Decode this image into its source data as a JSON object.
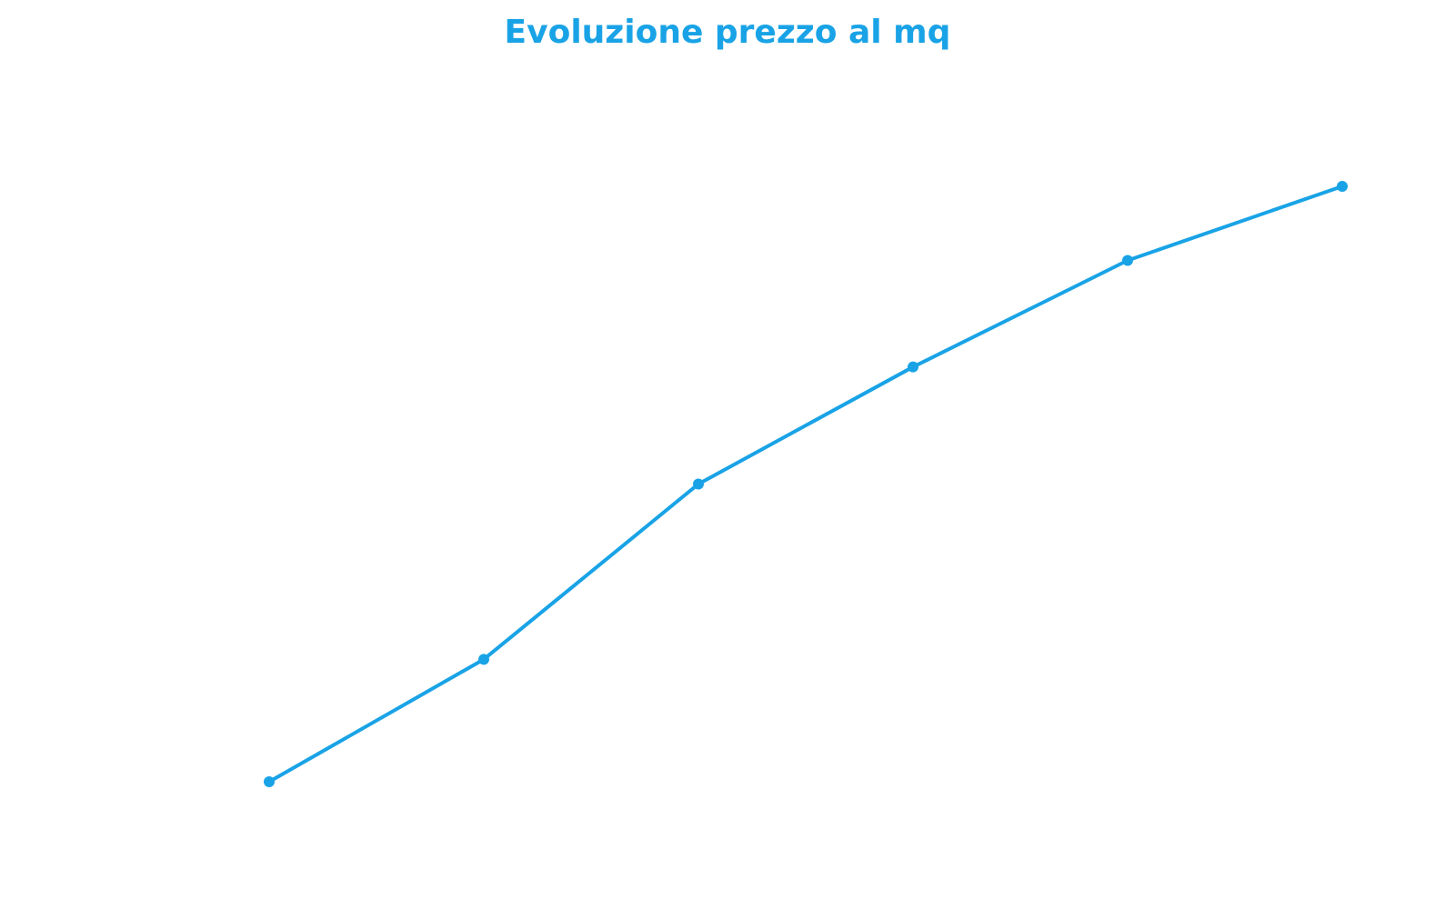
{
  "colors": {
    "accent": "#19a3e6",
    "background": "#ffffff"
  },
  "chart_data": {
    "type": "line",
    "title": "Evoluzione prezzo al mq",
    "xlabel": "",
    "ylabel": "",
    "axes_visible": false,
    "grid": false,
    "legend": "none",
    "series": [
      {
        "color": "#19a3e6",
        "markers": true,
        "x": [
          1,
          2,
          3,
          4,
          5,
          6
        ],
        "values": [
          10,
          28.5,
          55,
          72.7,
          88.8,
          100
        ]
      }
    ],
    "ylim": [
      0,
      100
    ]
  }
}
